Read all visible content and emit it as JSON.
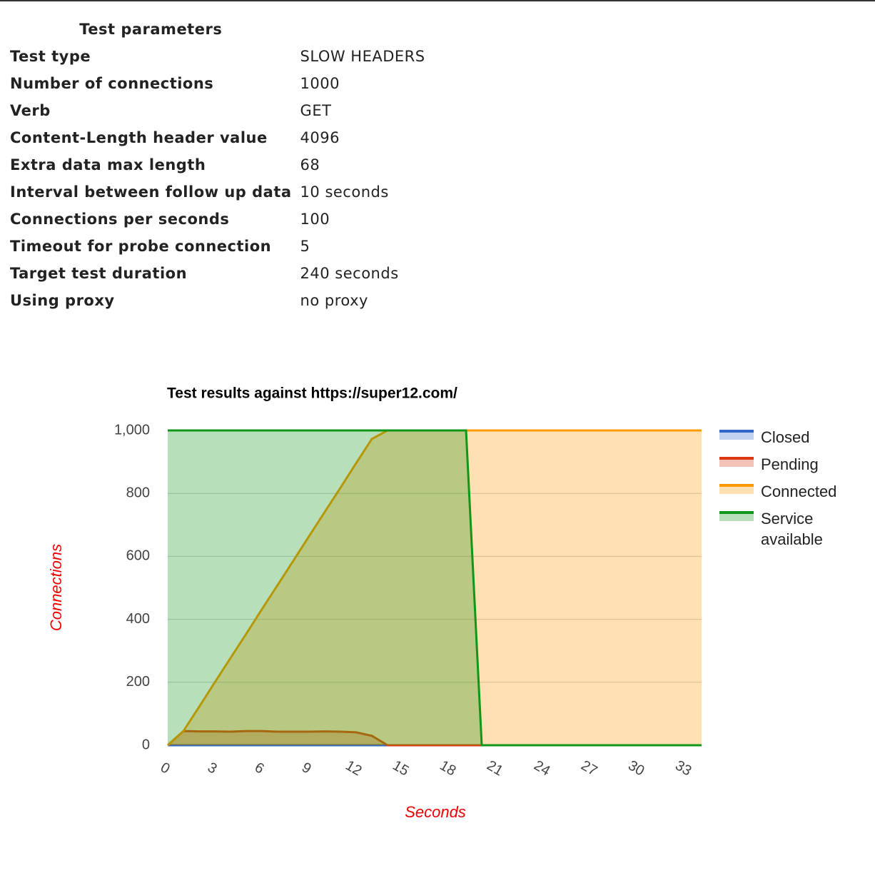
{
  "table": {
    "title": "Test parameters",
    "rows": [
      [
        "Test type",
        "SLOW HEADERS"
      ],
      [
        "Number of connections",
        "1000"
      ],
      [
        "Verb",
        "GET"
      ],
      [
        "Content-Length header value",
        "4096"
      ],
      [
        "Extra data max length",
        "68"
      ],
      [
        "Interval between follow up data",
        "10 seconds"
      ],
      [
        "Connections per seconds",
        "100"
      ],
      [
        "Timeout for probe connection",
        "5"
      ],
      [
        "Target test duration",
        "240 seconds"
      ],
      [
        "Using proxy",
        "no proxy"
      ]
    ]
  },
  "chart_data": {
    "type": "area",
    "title": "Test results against https://super12.com/",
    "x_label": "Seconds",
    "y_label": "Connections",
    "x": [
      0,
      1,
      2,
      3,
      4,
      5,
      6,
      7,
      8,
      9,
      10,
      11,
      12,
      13,
      14,
      15,
      16,
      17,
      18,
      19,
      20,
      21,
      22,
      23,
      24,
      25,
      26,
      27,
      28,
      29,
      30,
      31,
      32,
      33,
      34
    ],
    "series": [
      {
        "name": "Closed",
        "color": "#3366cc",
        "values": [
          0,
          0,
          0,
          0,
          0,
          0,
          0,
          0,
          0,
          0,
          0,
          0,
          0,
          0,
          0,
          0,
          0,
          0,
          0,
          0,
          0,
          0,
          0,
          0,
          0,
          0,
          0,
          0,
          0,
          0,
          0,
          0,
          0,
          0,
          0
        ]
      },
      {
        "name": "Pending",
        "color": "#dc3912",
        "values": [
          0,
          45,
          44,
          44,
          43,
          45,
          45,
          43,
          43,
          43,
          44,
          43,
          41,
          30,
          0,
          0,
          0,
          0,
          0,
          0,
          0,
          0,
          0,
          0,
          0,
          0,
          0,
          0,
          0,
          0,
          0,
          0,
          0,
          0,
          0
        ]
      },
      {
        "name": "Connected",
        "color": "#ff9900",
        "values": [
          0,
          45,
          122,
          200,
          277,
          354,
          432,
          509,
          586,
          664,
          741,
          818,
          896,
          973,
          1000,
          1000,
          1000,
          1000,
          1000,
          1000,
          1000,
          1000,
          1000,
          1000,
          1000,
          1000,
          1000,
          1000,
          1000,
          1000,
          1000,
          1000,
          1000,
          1000,
          1000
        ]
      },
      {
        "name": "Service available",
        "color": "#109618",
        "values": [
          1000,
          1000,
          1000,
          1000,
          1000,
          1000,
          1000,
          1000,
          1000,
          1000,
          1000,
          1000,
          1000,
          1000,
          1000,
          1000,
          1000,
          1000,
          1000,
          1000,
          0,
          0,
          0,
          0,
          0,
          0,
          0,
          0,
          0,
          0,
          0,
          0,
          0,
          0,
          0
        ]
      }
    ],
    "xlim": [
      0,
      34
    ],
    "xticks": [
      0,
      3,
      6,
      9,
      12,
      15,
      18,
      21,
      24,
      27,
      30,
      33
    ],
    "ylim": [
      0,
      1000
    ],
    "yticks": [
      0,
      200,
      400,
      600,
      800,
      {
        "value": 1000,
        "label": "1,000"
      }
    ],
    "grid": true,
    "legend": "right"
  }
}
